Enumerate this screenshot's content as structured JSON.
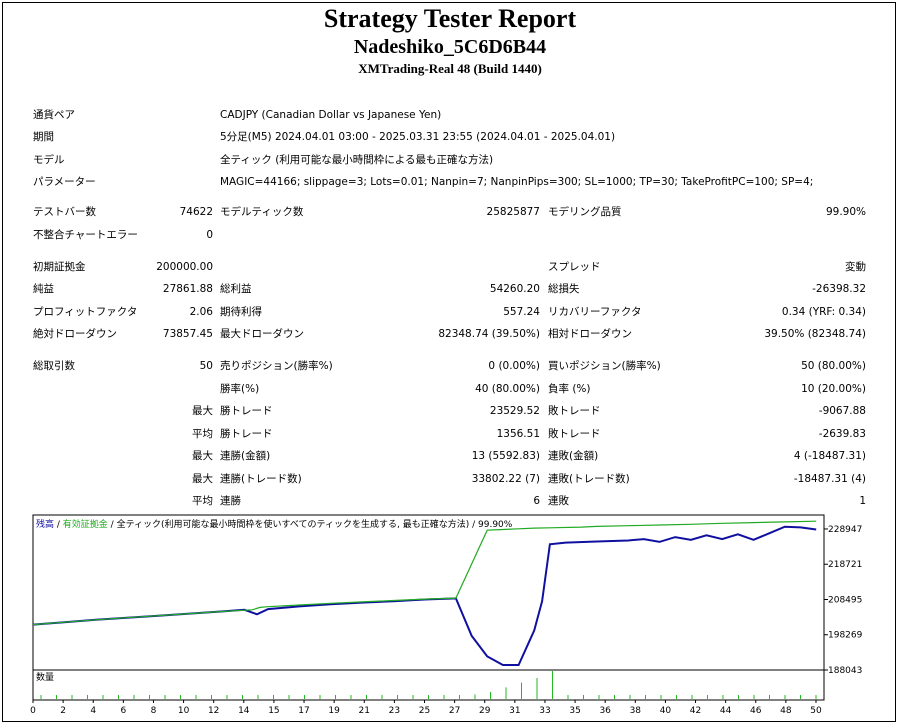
{
  "header": {
    "title": "Strategy Tester Report",
    "ea_name": "Nadeshiko_5C6D6B44",
    "server": "XMTrading-Real 48 (Build 1440)"
  },
  "settings": {
    "symbol_label": "通貨ペア",
    "symbol_value": "CADJPY (Canadian Dollar vs Japanese Yen)",
    "period_label": "期間",
    "period_value": "5分足(M5) 2024.04.01 03:00 - 2025.03.31 23:55 (2024.04.01 - 2025.04.01)",
    "model_label": "モデル",
    "model_value": "全ティック (利用可能な最小時間枠による最も正確な方法)",
    "params_label": "パラメーター",
    "params_value": "MAGIC=44166; slippage=3; Lots=0.01; Nanpin=7; NanpinPips=300; SL=1000; TP=30; TakeProfitPC=100; SP=4;"
  },
  "quality": {
    "bars_label": "テストバー数",
    "bars_value": "74622",
    "ticks_label": "モデルティック数",
    "ticks_value": "25825877",
    "quality_label": "モデリング品質",
    "quality_value": "99.90%",
    "mismatch_label": "不整合チャートエラー",
    "mismatch_value": "0"
  },
  "stats": {
    "deposit_label": "初期証拠金",
    "deposit_value": "200000.00",
    "spread_label": "スプレッド",
    "spread_value": "変動",
    "net_label": "純益",
    "net_value": "27861.88",
    "gross_profit_label": "総利益",
    "gross_profit_value": "54260.20",
    "gross_loss_label": "総損失",
    "gross_loss_value": "-26398.32",
    "pf_label": "プロフィットファクタ",
    "pf_value": "2.06",
    "expected_label": "期待利得",
    "expected_value": "557.24",
    "recovery_label": "リカバリーファクタ",
    "recovery_value": "0.34 (YRF: 0.34)",
    "abs_dd_label": "絶対ドローダウン",
    "abs_dd_value": "73857.45",
    "max_dd_label": "最大ドローダウン",
    "max_dd_value": "82348.74 (39.50%)",
    "rel_dd_label": "相対ドローダウン",
    "rel_dd_value": "39.50% (82348.74)"
  },
  "trades": {
    "total_label": "総取引数",
    "total_value": "50",
    "short_label": "売りポジション(勝率%)",
    "short_value": "0 (0.00%)",
    "long_label": "買いポジション(勝率%)",
    "long_value": "50 (80.00%)",
    "win_rate_label": "勝率(%)",
    "win_rate_value": "40 (80.00%)",
    "loss_rate_label": "負率 (%)",
    "loss_rate_value": "10 (20.00%)",
    "max_word": "最大",
    "avg_word": "平均",
    "largest_win_label": "勝トレード",
    "largest_win_value": "23529.52",
    "largest_loss_label": "敗トレード",
    "largest_loss_value": "-9067.88",
    "avg_win_label": "勝トレード",
    "avg_win_value": "1356.51",
    "avg_loss_label": "敗トレード",
    "avg_loss_value": "-2639.83",
    "max_consec_wins_money_label": "連勝(金額)",
    "max_consec_wins_money_value": "13 (5592.83)",
    "max_consec_loss_money_label": "連敗(金額)",
    "max_consec_loss_money_value": "4 (-18487.31)",
    "max_consec_wins_count_label": "連勝(トレード数)",
    "max_consec_wins_count_value": "33802.22 (7)",
    "max_consec_loss_count_label": "連敗(トレード数)",
    "max_consec_loss_count_value": "-18487.31 (4)",
    "avg_consec_wins_label": "連勝",
    "avg_consec_wins_value": "6",
    "avg_consec_loss_label": "連敗",
    "avg_consec_loss_value": "1"
  },
  "chart_data": {
    "type": "line",
    "legend": {
      "balance": "残高",
      "sep1": " / ",
      "equity": "有効証拠金",
      "sep2": " / ",
      "model_text": "全ティック(利用可能な最小時間枠を使いすべてのティックを生成する, 最も正確な方法)",
      "sep3": " / ",
      "quality": "99.90%"
    },
    "volume_label": "数量",
    "y_ticks": [
      "228947",
      "218721",
      "208495",
      "198269",
      "188043"
    ],
    "ylim": [
      188043,
      233000
    ],
    "x_ticks": [
      "0",
      "2",
      "4",
      "6",
      "8",
      "10",
      "12",
      "14",
      "15",
      "17",
      "19",
      "21",
      "23",
      "25",
      "27",
      "29",
      "31",
      "33",
      "35",
      "36",
      "38",
      "40",
      "42",
      "44",
      "46",
      "48",
      "50"
    ],
    "colors": {
      "balance": "#1010a0",
      "equity": "#22aa22",
      "volume": "#22bb22"
    },
    "series": [
      {
        "name": "残高",
        "x": [
          0,
          2,
          4,
          6,
          8,
          10,
          12,
          14,
          14.5,
          15,
          17,
          19,
          21,
          23,
          25,
          27,
          29,
          30,
          31,
          32,
          33,
          35,
          36,
          38,
          40,
          42,
          44,
          46,
          48,
          50
        ],
        "y": [
          201200,
          201900,
          202600,
          203200,
          203800,
          204400,
          205000,
          205500,
          206200,
          206400,
          206900,
          207400,
          207800,
          208200,
          208600,
          208900,
          228600,
          228800,
          229000,
          229200,
          229300,
          229500,
          229700,
          229900,
          230100,
          230300,
          230600,
          230800,
          231000,
          231200
        ]
      },
      {
        "name": "有効証拠金",
        "x": [
          0,
          2,
          4,
          6,
          8,
          10,
          12,
          13.5,
          14.3,
          15,
          17,
          19,
          21,
          23,
          25,
          27,
          28,
          29,
          30,
          31,
          32,
          32.5,
          33,
          34,
          36,
          38,
          39,
          40,
          41,
          42,
          43,
          44,
          45,
          46,
          47,
          48,
          49,
          50
        ],
        "y": [
          201200,
          201900,
          202600,
          203200,
          203800,
          204400,
          205000,
          205500,
          204200,
          205700,
          206500,
          207100,
          207600,
          208000,
          208500,
          208800,
          198000,
          192000,
          189500,
          189500,
          199500,
          208000,
          224500,
          225000,
          225300,
          225600,
          226000,
          225200,
          226600,
          225800,
          227100,
          226000,
          227400,
          225800,
          227700,
          229600,
          229400,
          228800
        ]
      }
    ],
    "volume": {
      "x": [
        0,
        1,
        2,
        3,
        4,
        5,
        6,
        7,
        8,
        9,
        10,
        11,
        12,
        13,
        14,
        15,
        16,
        17,
        18,
        19,
        20,
        21,
        22,
        23,
        24,
        25,
        26,
        27,
        28,
        29,
        30,
        31,
        32,
        33,
        34,
        35,
        36,
        37,
        38,
        39,
        40,
        41,
        42,
        43,
        44,
        45,
        46,
        47,
        48,
        49,
        50
      ],
      "y": [
        0.01,
        0.01,
        0.01,
        0.01,
        0.01,
        0.01,
        0.01,
        0.01,
        0.01,
        0.01,
        0.01,
        0.01,
        0.01,
        0.01,
        0.01,
        0.01,
        0.01,
        0.01,
        0.01,
        0.01,
        0.01,
        0.01,
        0.01,
        0.01,
        0.01,
        0.01,
        0.01,
        0.01,
        0.02,
        0.03,
        0.05,
        0.07,
        0.09,
        0.12,
        0.01,
        0.01,
        0.01,
        0.01,
        0.01,
        0.01,
        0.01,
        0.01,
        0.01,
        0.01,
        0.01,
        0.01,
        0.01,
        0.01,
        0.01,
        0.01,
        0.01
      ]
    }
  }
}
